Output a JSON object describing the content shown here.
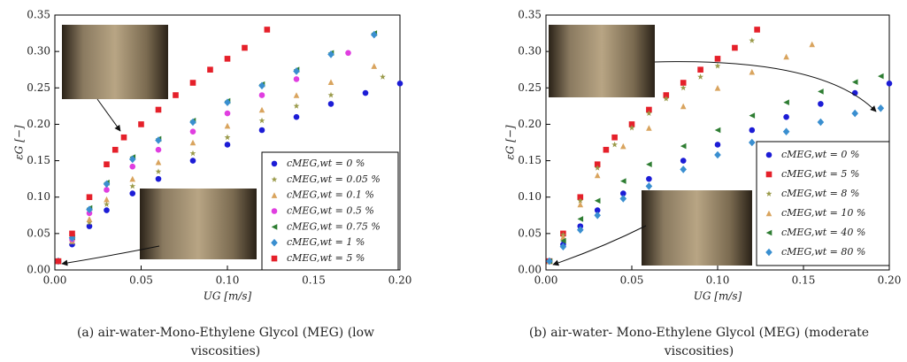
{
  "chart_data": [
    {
      "type": "scatter",
      "xlabel": "UG [m/s]",
      "ylabel": "εG [−]",
      "caption": [
        "(a) air-water-Mono-Ethylene Glycol (MEG) (low",
        "viscosities)"
      ],
      "xlim": [
        0,
        0.2
      ],
      "ylim": [
        0,
        0.35
      ],
      "xticks": [
        {
          "value": 0,
          "label": "0.00"
        },
        0.05,
        {
          "value": 0.1,
          "label": "0.10"
        },
        0.15,
        {
          "value": 0.2,
          "label": "0.20"
        }
      ],
      "yticks": [
        {
          "value": 0,
          "label": "0.00"
        },
        0.05,
        {
          "value": 0.1,
          "label": "0.10"
        },
        0.15,
        {
          "value": 0.2,
          "label": "0.20"
        },
        0.25,
        {
          "value": 0.3,
          "label": "0.30"
        },
        0.35
      ],
      "legend": "lower right",
      "series": [
        {
          "name": "cMEG,wt = 0 %",
          "color": "#1c1cd6",
          "marker": "circle",
          "x": [
            0.002,
            0.01,
            0.02,
            0.03,
            0.045,
            0.06,
            0.08,
            0.1,
            0.12,
            0.14,
            0.16,
            0.18,
            0.2
          ],
          "values": [
            0.012,
            0.035,
            0.06,
            0.082,
            0.105,
            0.125,
            0.15,
            0.172,
            0.192,
            0.21,
            0.228,
            0.243,
            0.256
          ]
        },
        {
          "name": "cMEG,wt = 0.05 %",
          "color": "#9a9a4a",
          "marker": "star",
          "x": [
            0.002,
            0.01,
            0.02,
            0.03,
            0.045,
            0.06,
            0.08,
            0.1,
            0.12,
            0.14,
            0.16,
            0.19
          ],
          "values": [
            0.012,
            0.038,
            0.065,
            0.09,
            0.115,
            0.135,
            0.16,
            0.182,
            0.205,
            0.225,
            0.24,
            0.265
          ]
        },
        {
          "name": "cMEG,wt = 0.1 %",
          "color": "#d9a45e",
          "marker": "triangle",
          "x": [
            0.002,
            0.01,
            0.02,
            0.03,
            0.045,
            0.06,
            0.08,
            0.1,
            0.12,
            0.14,
            0.16,
            0.185
          ],
          "values": [
            0.012,
            0.04,
            0.07,
            0.097,
            0.125,
            0.148,
            0.175,
            0.198,
            0.22,
            0.24,
            0.258,
            0.28
          ]
        },
        {
          "name": "cMEG,wt = 0.5 %",
          "color": "#e03ee0",
          "marker": "circle",
          "x": [
            0.002,
            0.01,
            0.02,
            0.03,
            0.045,
            0.06,
            0.08,
            0.1,
            0.12,
            0.14,
            0.17
          ],
          "values": [
            0.012,
            0.042,
            0.078,
            0.11,
            0.142,
            0.165,
            0.19,
            0.215,
            0.24,
            0.262,
            0.298
          ]
        },
        {
          "name": "cMEG,wt = 0.75 %",
          "color": "#2e7d32",
          "marker": "triangle-left",
          "x": [
            0.002,
            0.01,
            0.02,
            0.03,
            0.045,
            0.06,
            0.08,
            0.1,
            0.12,
            0.14,
            0.16,
            0.185
          ],
          "values": [
            0.012,
            0.045,
            0.085,
            0.12,
            0.155,
            0.18,
            0.205,
            0.232,
            0.255,
            0.275,
            0.298,
            0.325
          ]
        },
        {
          "name": "cMEG,wt = 1 %",
          "color": "#3a8fd0",
          "marker": "diamond",
          "x": [
            0.002,
            0.01,
            0.02,
            0.03,
            0.045,
            0.06,
            0.08,
            0.1,
            0.12,
            0.14,
            0.16,
            0.185
          ],
          "values": [
            0.012,
            0.044,
            0.083,
            0.118,
            0.152,
            0.178,
            0.203,
            0.23,
            0.253,
            0.273,
            0.296,
            0.323
          ]
        },
        {
          "name": "cMEG,wt = 5 %",
          "color": "#e5202a",
          "marker": "square",
          "x": [
            0.002,
            0.01,
            0.02,
            0.03,
            0.035,
            0.04,
            0.05,
            0.06,
            0.07,
            0.08,
            0.09,
            0.1,
            0.11,
            0.123
          ],
          "values": [
            0.012,
            0.05,
            0.1,
            0.145,
            0.165,
            0.182,
            0.2,
            0.22,
            0.24,
            0.257,
            0.275,
            0.29,
            0.305,
            0.33
          ]
        }
      ]
    },
    {
      "type": "scatter",
      "xlabel": "UG [m/s]",
      "ylabel": "εG [−]",
      "caption": [
        "(b) air-water- Mono-Ethylene Glycol (MEG) (moderate",
        "viscosities)"
      ],
      "xlim": [
        0,
        0.2
      ],
      "ylim": [
        0,
        0.35
      ],
      "xticks": [
        {
          "value": 0,
          "label": "0.00"
        },
        0.05,
        {
          "value": 0.1,
          "label": "0.10"
        },
        0.15,
        {
          "value": 0.2,
          "label": "0.20"
        }
      ],
      "yticks": [
        {
          "value": 0,
          "label": "0.00"
        },
        0.05,
        {
          "value": 0.1,
          "label": "0.10"
        },
        0.15,
        {
          "value": 0.2,
          "label": "0.20"
        },
        0.25,
        {
          "value": 0.3,
          "label": "0.30"
        },
        0.35
      ],
      "legend": "lower right",
      "series": [
        {
          "name": "cMEG,wt = 0 %",
          "color": "#1c1cd6",
          "marker": "circle",
          "x": [
            0.002,
            0.01,
            0.02,
            0.03,
            0.045,
            0.06,
            0.08,
            0.1,
            0.12,
            0.14,
            0.16,
            0.18,
            0.2
          ],
          "values": [
            0.012,
            0.035,
            0.06,
            0.082,
            0.105,
            0.125,
            0.15,
            0.172,
            0.192,
            0.21,
            0.228,
            0.243,
            0.256
          ]
        },
        {
          "name": "cMEG,wt = 5 %",
          "color": "#e5202a",
          "marker": "square",
          "x": [
            0.002,
            0.01,
            0.02,
            0.03,
            0.035,
            0.04,
            0.05,
            0.06,
            0.07,
            0.08,
            0.09,
            0.1,
            0.11,
            0.123
          ],
          "values": [
            0.012,
            0.05,
            0.1,
            0.145,
            0.165,
            0.182,
            0.2,
            0.22,
            0.24,
            0.257,
            0.275,
            0.29,
            0.305,
            0.33
          ]
        },
        {
          "name": "cMEG,wt = 8 %",
          "color": "#9a9a4a",
          "marker": "star",
          "x": [
            0.002,
            0.01,
            0.02,
            0.03,
            0.04,
            0.05,
            0.06,
            0.07,
            0.08,
            0.09,
            0.1,
            0.12
          ],
          "values": [
            0.012,
            0.048,
            0.095,
            0.14,
            0.172,
            0.195,
            0.215,
            0.235,
            0.25,
            0.265,
            0.28,
            0.315
          ]
        },
        {
          "name": "cMEG,wt = 10 %",
          "color": "#d9a45e",
          "marker": "triangle",
          "x": [
            0.002,
            0.01,
            0.02,
            0.03,
            0.045,
            0.06,
            0.08,
            0.1,
            0.12,
            0.14,
            0.155
          ],
          "values": [
            0.012,
            0.045,
            0.09,
            0.13,
            0.17,
            0.195,
            0.225,
            0.25,
            0.272,
            0.293,
            0.31
          ]
        },
        {
          "name": "cMEG,wt = 40 %",
          "color": "#2e7d32",
          "marker": "triangle-left",
          "x": [
            0.002,
            0.01,
            0.02,
            0.03,
            0.045,
            0.06,
            0.08,
            0.1,
            0.12,
            0.14,
            0.16,
            0.18,
            0.195
          ],
          "values": [
            0.012,
            0.04,
            0.07,
            0.095,
            0.122,
            0.145,
            0.17,
            0.192,
            0.212,
            0.23,
            0.245,
            0.258,
            0.266
          ]
        },
        {
          "name": "cMEG,wt = 80 %",
          "color": "#3a8fd0",
          "marker": "diamond",
          "x": [
            0.002,
            0.01,
            0.02,
            0.03,
            0.045,
            0.06,
            0.08,
            0.1,
            0.12,
            0.14,
            0.16,
            0.18,
            0.195
          ],
          "values": [
            0.012,
            0.032,
            0.055,
            0.075,
            0.098,
            0.115,
            0.138,
            0.158,
            0.175,
            0.19,
            0.203,
            0.215,
            0.222
          ]
        }
      ]
    }
  ]
}
